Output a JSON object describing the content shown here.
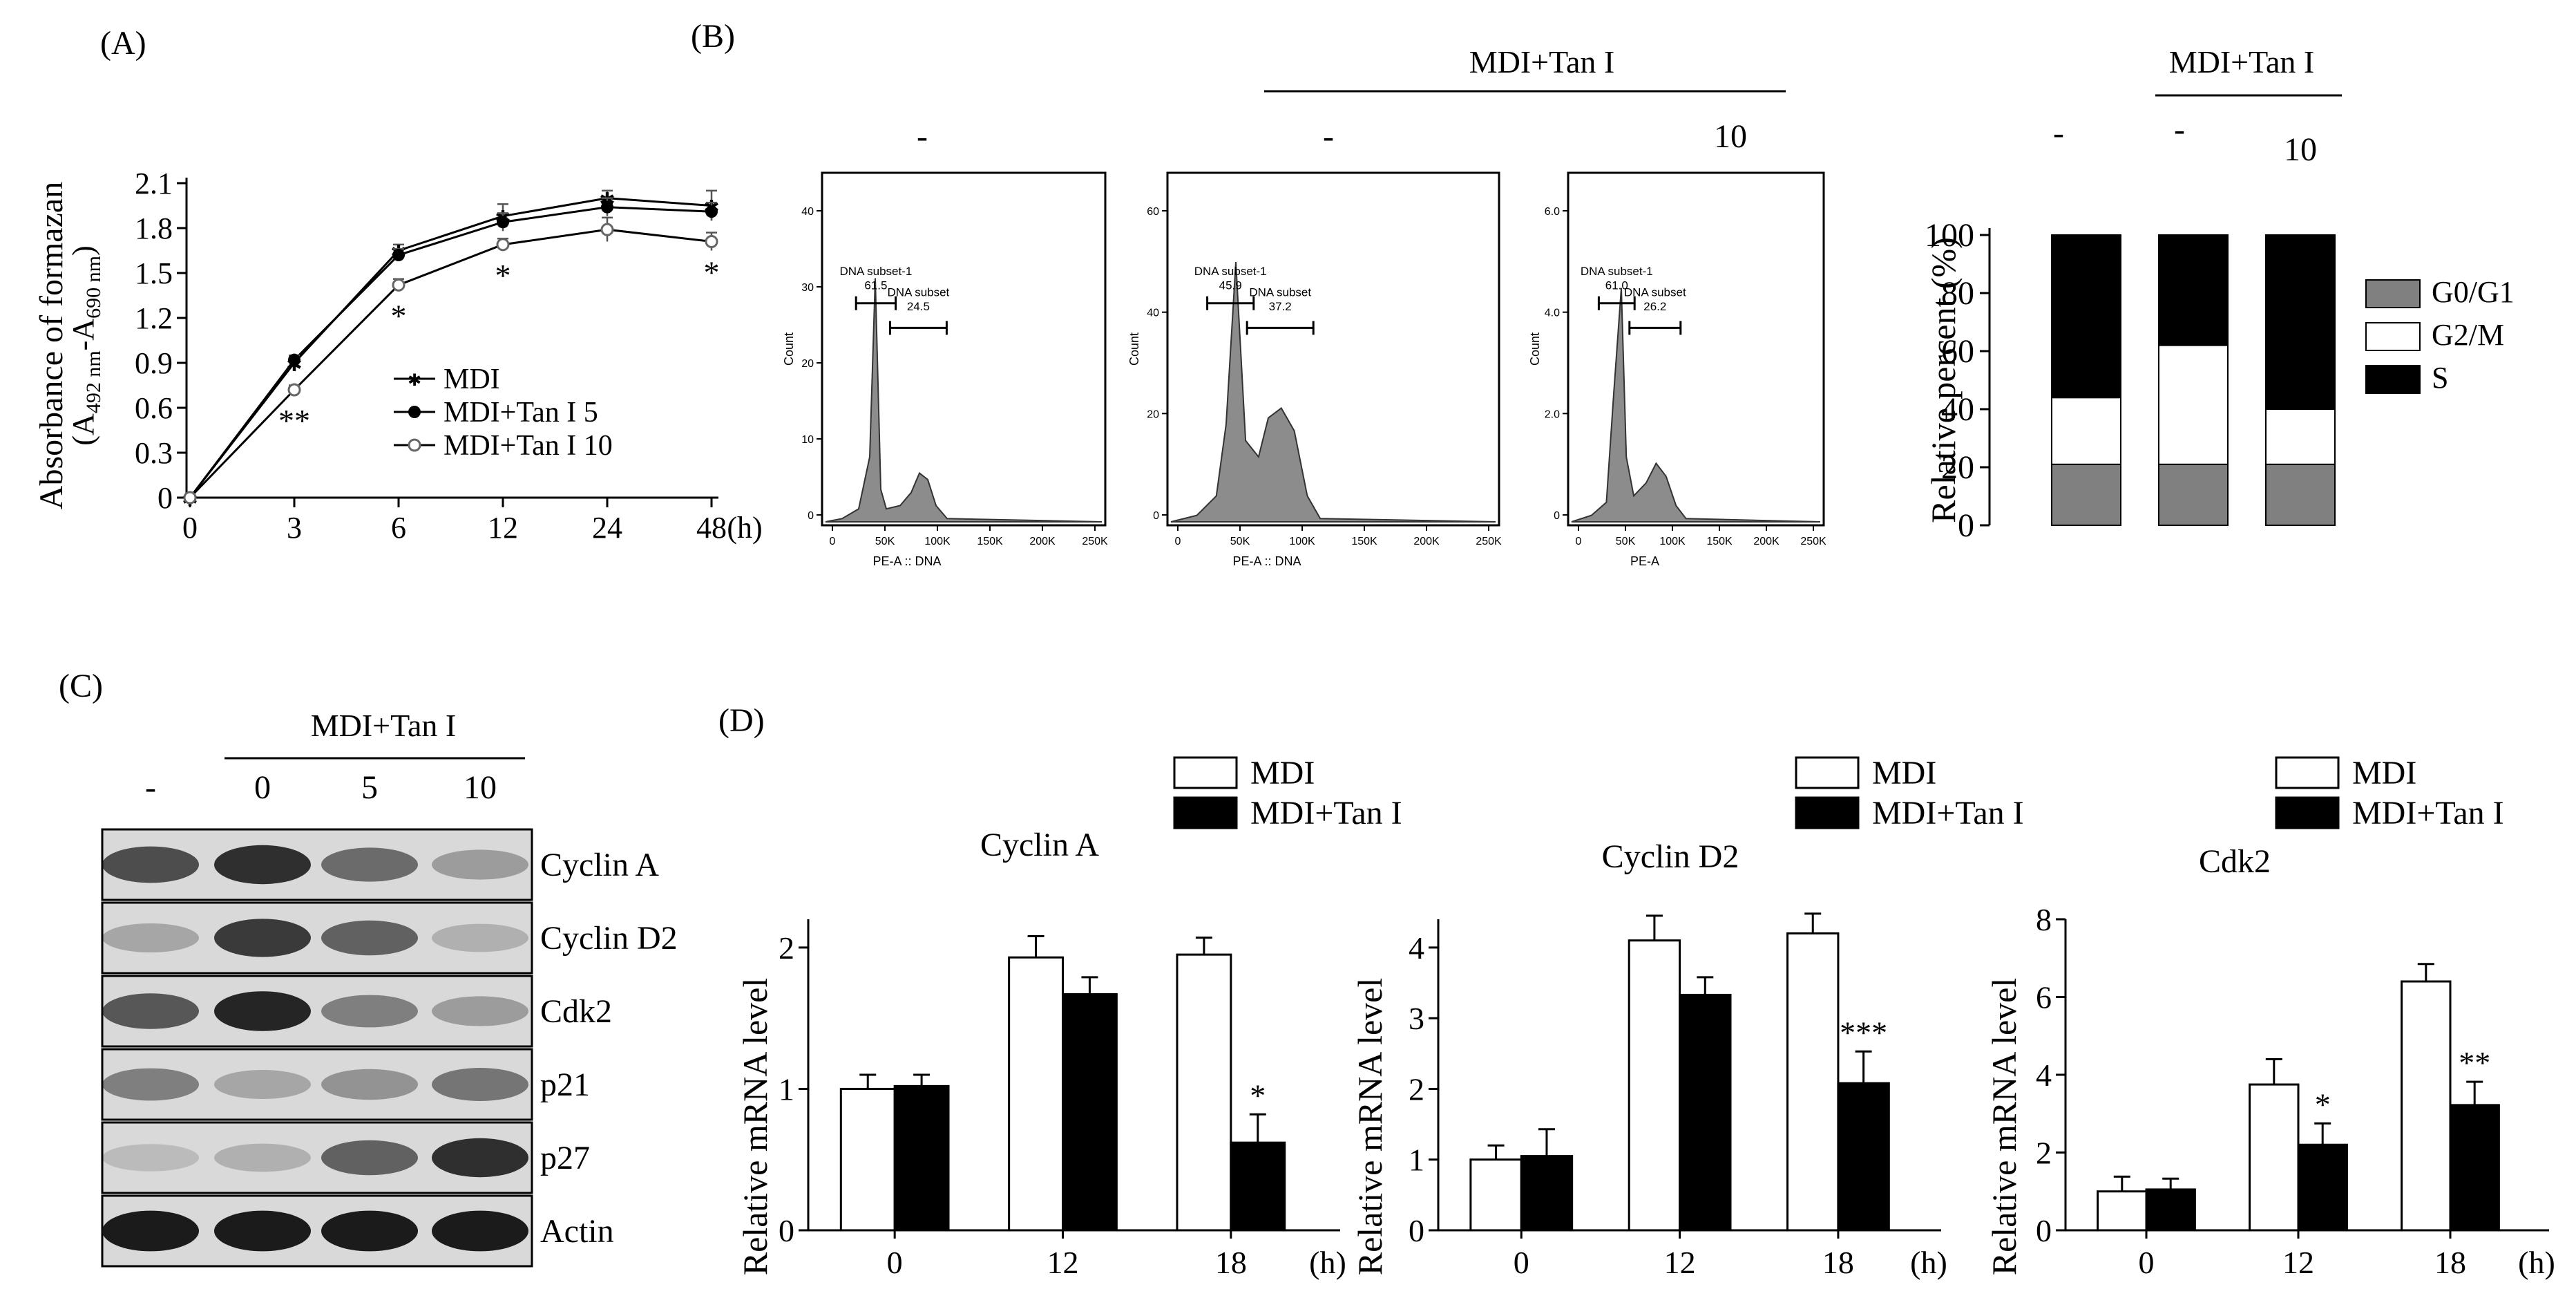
{
  "chart_data": [
    {
      "panel": "(A)",
      "type": "line",
      "ylabel_main": "Absorbance of formazan",
      "ylabel_sub_a": "A",
      "ylabel_sub_a_idx": "492 nm",
      "ylabel_sub_b": "-A",
      "ylabel_sub_b_idx": "690 nm",
      "x": [
        "0",
        "3",
        "6",
        "12",
        "24",
        "48"
      ],
      "x_unit": "(h)",
      "yticks": [
        "0",
        "0.3",
        "0.6",
        "0.9",
        "1.2",
        "1.5",
        "1.8",
        "2.1"
      ],
      "ylim": [
        0,
        2.1
      ],
      "series": [
        {
          "name": "MDI",
          "values": [
            0.0,
            0.9,
            1.65,
            1.88,
            2.0,
            1.95
          ],
          "errors": [
            0.02,
            0.03,
            0.04,
            0.08,
            0.05,
            0.1
          ]
        },
        {
          "name": "MDI+Tan I 5",
          "values": [
            0.0,
            0.92,
            1.62,
            1.84,
            1.94,
            1.91
          ],
          "errors": [
            0.02,
            0.03,
            0.04,
            0.06,
            0.06,
            0.06
          ]
        },
        {
          "name": "MDI+Tan I 10",
          "values": [
            0.0,
            0.72,
            1.42,
            1.69,
            1.79,
            1.71
          ],
          "errors": [
            0.02,
            0.03,
            0.04,
            0.04,
            0.08,
            0.06
          ]
        }
      ],
      "annotations": [
        "**",
        "*",
        "*",
        "*"
      ]
    },
    {
      "panel": "(B)",
      "type": "area",
      "group_label": "MDI+Tan I",
      "treatment_labels": [
        "-",
        "-",
        "10"
      ],
      "xlabel_1": "PE-A :: DNA",
      "xlabel_2": "PE-A :: DNA",
      "xlabel_3": "PE-A",
      "ylabel": "Count",
      "xticks": [
        "0",
        "50K",
        "100K",
        "150K",
        "200K",
        "250K"
      ],
      "histograms": [
        {
          "yticks": [
            "0",
            "10",
            "20",
            "30",
            "40"
          ],
          "gate1_label": "DNA subset-1",
          "gate1_value": "61.5",
          "gate2_label": "DNA subset",
          "gate2_value": "24.5"
        },
        {
          "yticks": [
            "0",
            "20",
            "40",
            "60"
          ],
          "gate1_label": "DNA subset-1",
          "gate1_value": "45.9",
          "gate2_label": "DNA subset",
          "gate2_value": "37.2"
        },
        {
          "yticks": [
            "0",
            "2.0",
            "4.0",
            "6.0"
          ],
          "gate1_label": "DNA subset-1",
          "gate1_value": "61.0",
          "gate2_label": "DNA subset",
          "gate2_value": "26.2"
        }
      ]
    },
    {
      "panel": "(B) stacked",
      "type": "bar",
      "group_label": "MDI+Tan I",
      "categories": [
        "-",
        "-",
        "10"
      ],
      "ylabel": "Relative percent (%)",
      "yticks": [
        "0",
        "20",
        "40",
        "60",
        "80",
        "100"
      ],
      "ylim": [
        0,
        100
      ],
      "series": [
        {
          "name": "G0/G1",
          "values": [
            21,
            21,
            21
          ],
          "color": "#808080"
        },
        {
          "name": "G2/M",
          "values": [
            23,
            41,
            19
          ],
          "color": "#ffffff"
        },
        {
          "name": "S",
          "values": [
            56,
            38,
            60
          ],
          "color": "#000000"
        }
      ]
    },
    {
      "panel": "(C)",
      "type": "table",
      "group_label": "MDI+Tan I",
      "lanes": [
        "-",
        "0",
        "5",
        "10"
      ],
      "bands": [
        "Cyclin A",
        "Cyclin D2",
        "Cdk2",
        "p21",
        "p27",
        "Actin"
      ]
    },
    {
      "panel": "(D)",
      "type": "bar",
      "title": "Cyclin A",
      "ylabel": "Relative mRNA level",
      "categories": [
        "0",
        "12",
        "18"
      ],
      "x_unit": "(h)",
      "yticks": [
        "0",
        "1",
        "2"
      ],
      "ylim": [
        0,
        2.2
      ],
      "series": [
        {
          "name": "MDI",
          "values": [
            1.0,
            1.93,
            1.95
          ],
          "errors": [
            0.1,
            0.15,
            0.12
          ]
        },
        {
          "name": "MDI+Tan I",
          "values": [
            1.02,
            1.67,
            0.62
          ],
          "errors": [
            0.08,
            0.12,
            0.2
          ]
        }
      ],
      "annotations": [
        "*"
      ]
    },
    {
      "panel": "(D)",
      "type": "bar",
      "title": "Cyclin D2",
      "ylabel": "Relative mRNA level",
      "categories": [
        "0",
        "12",
        "18"
      ],
      "x_unit": "(h)",
      "yticks": [
        "0",
        "1",
        "2",
        "3",
        "4"
      ],
      "ylim": [
        0,
        4.4
      ],
      "series": [
        {
          "name": "MDI",
          "values": [
            1.0,
            4.1,
            4.2
          ],
          "errors": [
            0.2,
            0.35,
            0.28
          ]
        },
        {
          "name": "MDI+Tan I",
          "values": [
            1.05,
            3.33,
            2.08
          ],
          "errors": [
            0.38,
            0.25,
            0.45
          ]
        }
      ],
      "annotations": [
        "***"
      ]
    },
    {
      "panel": "(D)",
      "type": "bar",
      "title": "Cdk2",
      "ylabel": "Relative mRNA level",
      "categories": [
        "0",
        "12",
        "18"
      ],
      "x_unit": "(h)",
      "yticks": [
        "0",
        "2",
        "4",
        "6",
        "8"
      ],
      "ylim": [
        0,
        8
      ],
      "series": [
        {
          "name": "MDI",
          "values": [
            1.0,
            3.75,
            6.4
          ],
          "errors": [
            0.38,
            0.65,
            0.45
          ]
        },
        {
          "name": "MDI+Tan I",
          "values": [
            1.05,
            2.2,
            3.22
          ],
          "errors": [
            0.28,
            0.55,
            0.6
          ]
        }
      ],
      "annotations": [
        "*",
        "**"
      ]
    }
  ]
}
